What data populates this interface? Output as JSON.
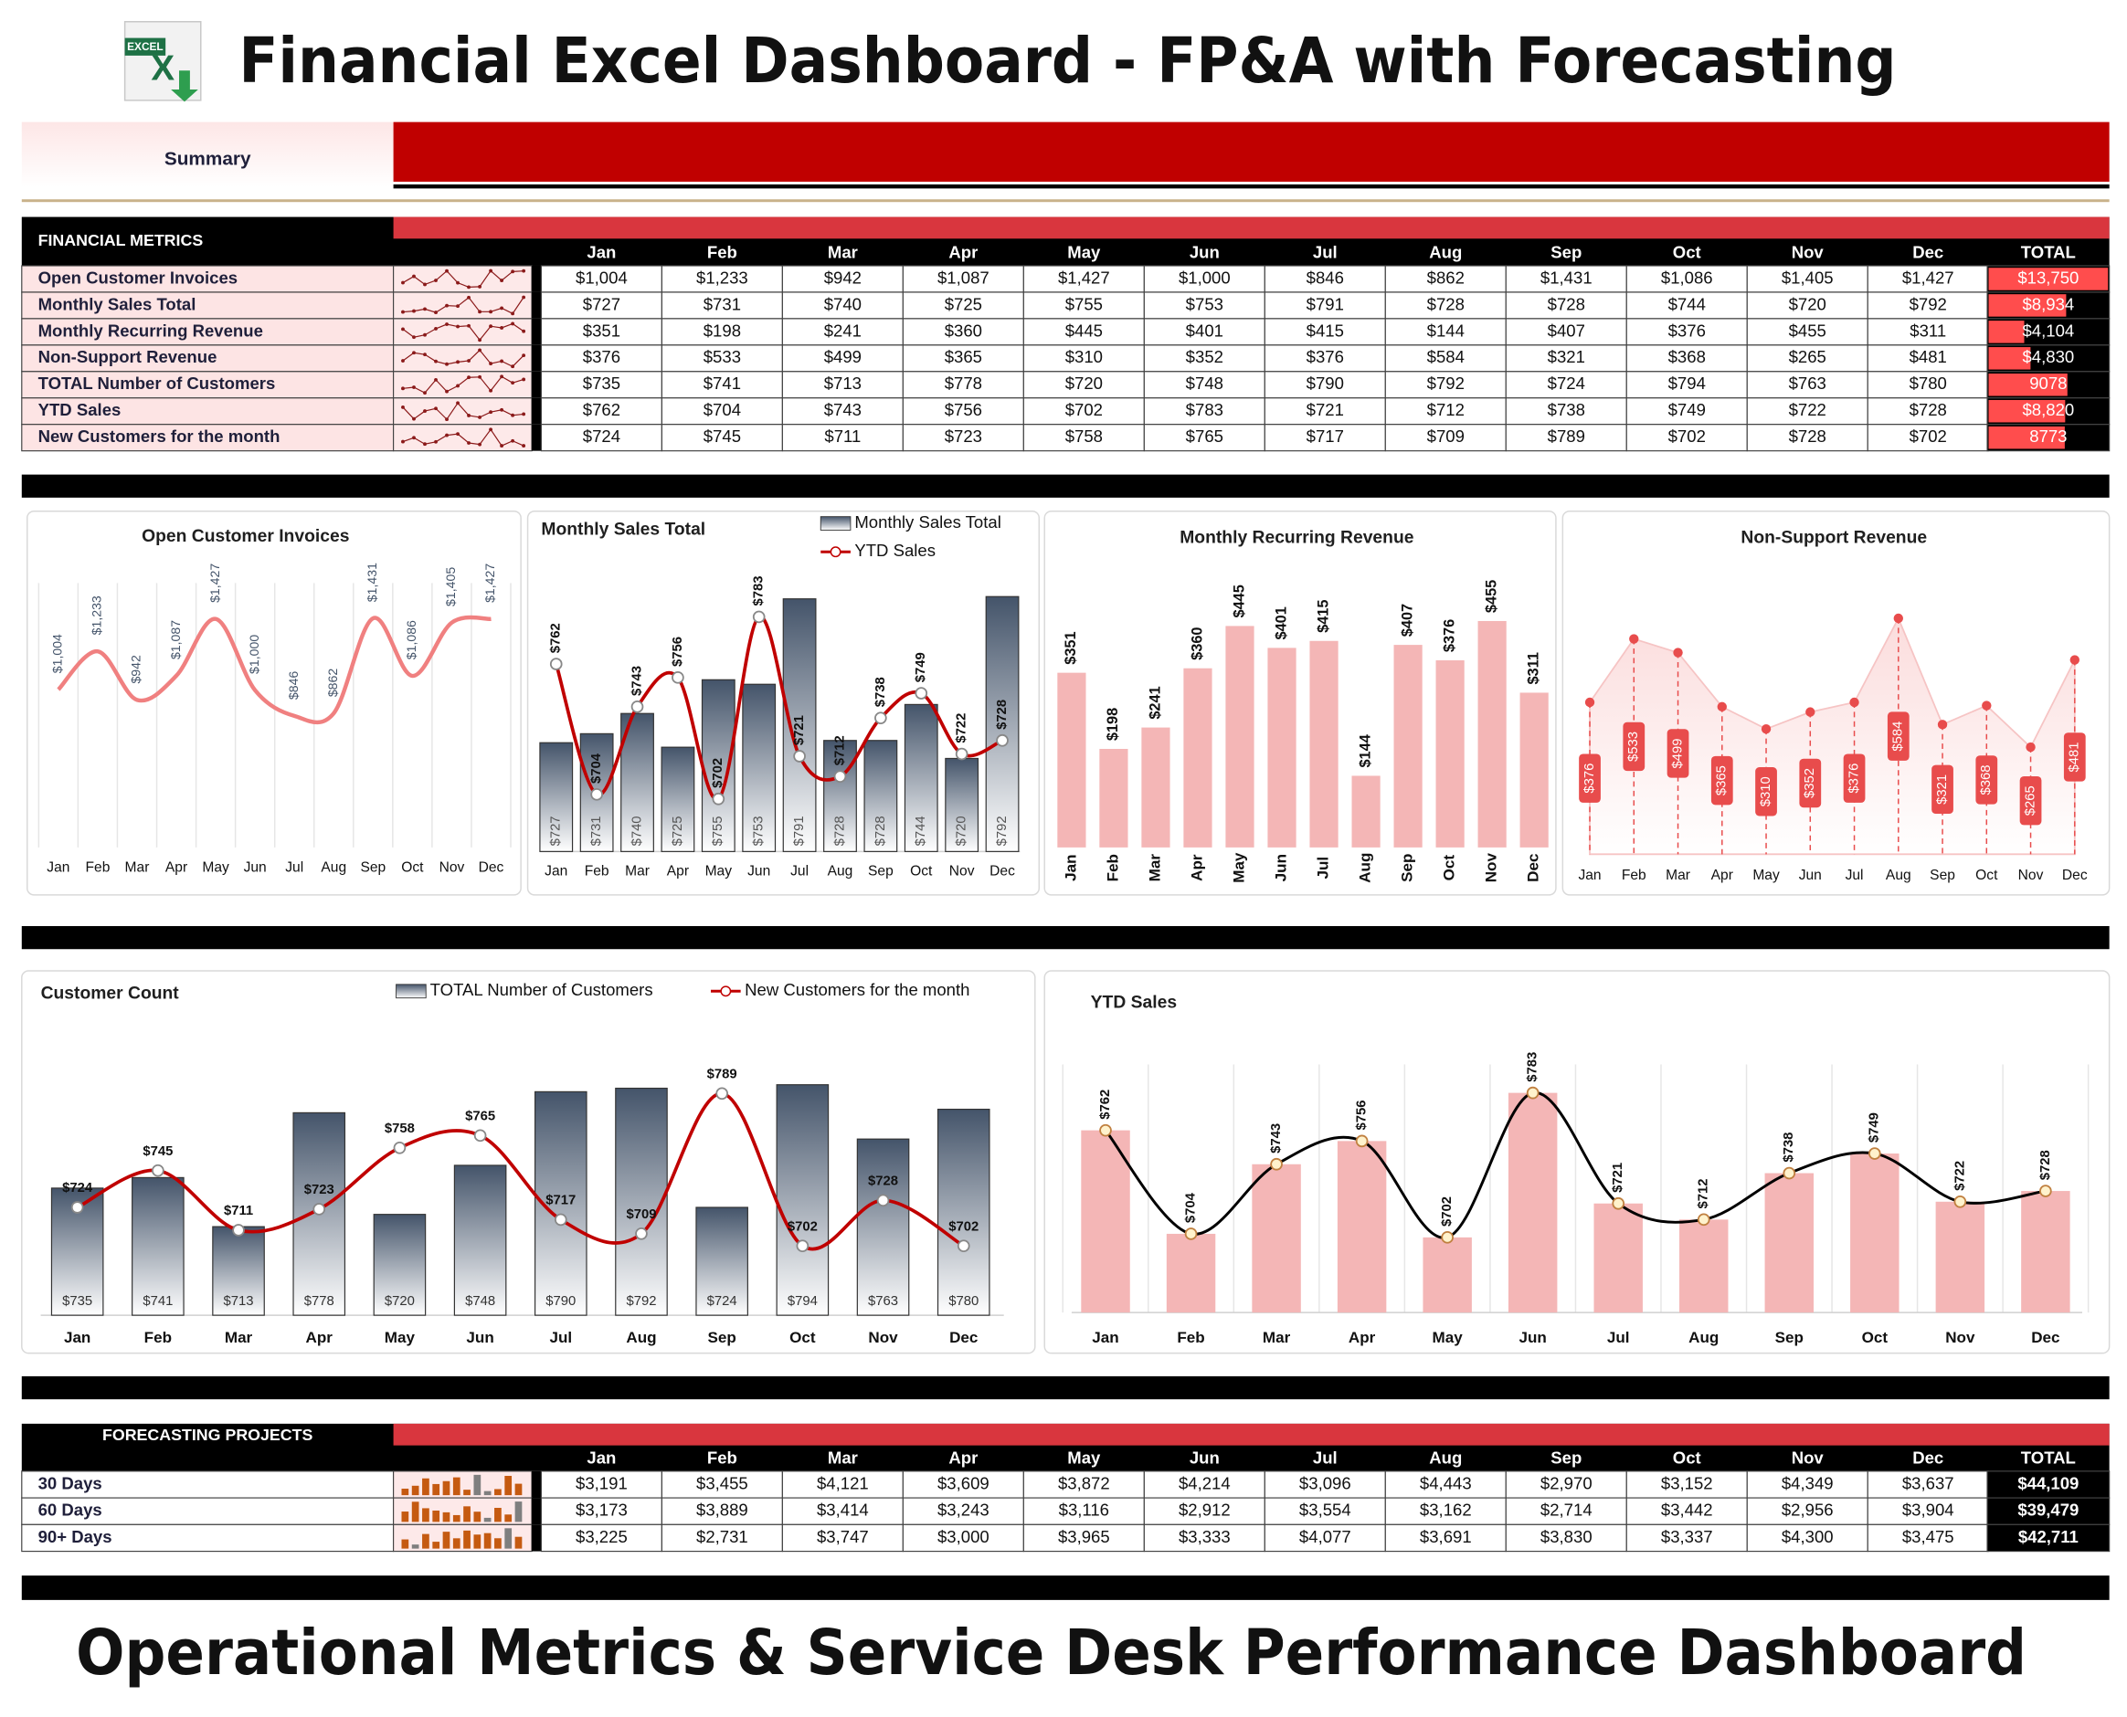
{
  "header": {
    "icon_text": "EXCEL",
    "title": "Financial Excel Dashboard - FP&A with Forecasting",
    "tab": "Summary"
  },
  "metrics_table": {
    "title": "FINANCIAL METRICS",
    "columns": [
      "Jan",
      "Feb",
      "Mar",
      "Apr",
      "May",
      "Jun",
      "Jul",
      "Aug",
      "Sep",
      "Oct",
      "Nov",
      "Dec"
    ],
    "total_header": "TOTAL",
    "rows": [
      {
        "label": "Open Customer Invoices",
        "values": [
          1004,
          1233,
          942,
          1087,
          1427,
          1000,
          846,
          862,
          1431,
          1086,
          1405,
          1427
        ],
        "value_labels": [
          "$1,004",
          "$1,233",
          "$942",
          "$1,087",
          "$1,427",
          "$1,000",
          "$846",
          "$862",
          "$1,431",
          "$1,086",
          "$1,405",
          "$1,427"
        ],
        "total": 13750,
        "total_label": "$13,750"
      },
      {
        "label": "Monthly Sales Total",
        "values": [
          727,
          731,
          740,
          725,
          755,
          753,
          791,
          728,
          728,
          744,
          720,
          792
        ],
        "value_labels": [
          "$727",
          "$731",
          "$740",
          "$725",
          "$755",
          "$753",
          "$791",
          "$728",
          "$728",
          "$744",
          "$720",
          "$792"
        ],
        "total": 8934,
        "total_label": "$8,934"
      },
      {
        "label": "Monthly Recurring Revenue",
        "values": [
          351,
          198,
          241,
          360,
          445,
          401,
          415,
          144,
          407,
          376,
          455,
          311
        ],
        "value_labels": [
          "$351",
          "$198",
          "$241",
          "$360",
          "$445",
          "$401",
          "$415",
          "$144",
          "$407",
          "$376",
          "$455",
          "$311"
        ],
        "total": 4104,
        "total_label": "$4,104"
      },
      {
        "label": "Non-Support Revenue",
        "values": [
          376,
          533,
          499,
          365,
          310,
          352,
          376,
          584,
          321,
          368,
          265,
          481
        ],
        "value_labels": [
          "$376",
          "$533",
          "$499",
          "$365",
          "$310",
          "$352",
          "$376",
          "$584",
          "$321",
          "$368",
          "$265",
          "$481"
        ],
        "total": 4830,
        "total_label": "$4,830"
      },
      {
        "label": "TOTAL Number of Customers",
        "values": [
          735,
          741,
          713,
          778,
          720,
          748,
          790,
          792,
          724,
          794,
          763,
          780
        ],
        "value_labels": [
          "$735",
          "$741",
          "$713",
          "$778",
          "$720",
          "$748",
          "$790",
          "$792",
          "$724",
          "$794",
          "$763",
          "$780"
        ],
        "total": 9078,
        "total_label": "9078"
      },
      {
        "label": "YTD Sales",
        "values": [
          762,
          704,
          743,
          756,
          702,
          783,
          721,
          712,
          738,
          749,
          722,
          728
        ],
        "value_labels": [
          "$762",
          "$704",
          "$743",
          "$756",
          "$702",
          "$783",
          "$721",
          "$712",
          "$738",
          "$749",
          "$722",
          "$728"
        ],
        "total": 8820,
        "total_label": "$8,820"
      },
      {
        "label": "New Customers for the month",
        "values": [
          724,
          745,
          711,
          723,
          758,
          765,
          717,
          709,
          789,
          702,
          728,
          702
        ],
        "value_labels": [
          "$724",
          "$745",
          "$711",
          "$723",
          "$758",
          "$765",
          "$717",
          "$709",
          "$789",
          "$702",
          "$728",
          "$702"
        ],
        "total": 8773,
        "total_label": "8773"
      }
    ],
    "spark_color": "#8b1a1a",
    "bar_color": "#ff4d4d"
  },
  "chart_data": [
    {
      "type": "line",
      "title": "Open Customer Invoices",
      "categories": [
        "Jan",
        "Feb",
        "Mar",
        "Apr",
        "May",
        "Jun",
        "Jul",
        "Aug",
        "Sep",
        "Oct",
        "Nov",
        "Dec"
      ],
      "values": [
        1004,
        1233,
        942,
        1087,
        1427,
        1000,
        846,
        862,
        1431,
        1086,
        1405,
        1427
      ],
      "value_labels": [
        "$1,004",
        "$1,233",
        "$942",
        "$1,087",
        "$1,427",
        "$1,000",
        "$846",
        "$862",
        "$1,431",
        "$1,086",
        "$1,405",
        "$1,427"
      ],
      "color": "#f08080",
      "smooth": true
    },
    {
      "type": "combo",
      "title": "Monthly Sales Total",
      "categories": [
        "Jan",
        "Feb",
        "Mar",
        "Apr",
        "May",
        "Jun",
        "Jul",
        "Aug",
        "Sep",
        "Oct",
        "Nov",
        "Dec"
      ],
      "legend": "top-right",
      "series": [
        {
          "name": "Monthly Sales Total",
          "kind": "bar",
          "color": "#44546a",
          "values": [
            727,
            731,
            740,
            725,
            755,
            753,
            791,
            728,
            728,
            744,
            720,
            792
          ],
          "value_labels": [
            "$727",
            "$731",
            "$740",
            "$725",
            "$755",
            "$753",
            "$791",
            "$728",
            "$728",
            "$744",
            "$720",
            "$792"
          ]
        },
        {
          "name": "YTD Sales",
          "kind": "line",
          "color": "#c00000",
          "values": [
            762,
            704,
            743,
            756,
            702,
            783,
            721,
            712,
            738,
            749,
            722,
            728
          ],
          "value_labels": [
            "$762",
            "$704",
            "$743",
            "$756",
            "$702",
            "$783",
            "$721",
            "$712",
            "$738",
            "$749",
            "$722",
            "$728"
          ]
        }
      ]
    },
    {
      "type": "bar",
      "title": "Monthly Recurring Revenue",
      "categories": [
        "Jan",
        "Feb",
        "Mar",
        "Apr",
        "May",
        "Jun",
        "Jul",
        "Aug",
        "Sep",
        "Oct",
        "Nov",
        "Dec"
      ],
      "values": [
        351,
        198,
        241,
        360,
        445,
        401,
        415,
        144,
        407,
        376,
        455,
        311
      ],
      "value_labels": [
        "$351",
        "$198",
        "$241",
        "$360",
        "$445",
        "$401",
        "$415",
        "$144",
        "$407",
        "$376",
        "$455",
        "$311"
      ],
      "color": "#f4b6b6"
    },
    {
      "type": "area",
      "title": "Non-Support Revenue",
      "categories": [
        "Jan",
        "Feb",
        "Mar",
        "Apr",
        "May",
        "Jun",
        "Jul",
        "Aug",
        "Sep",
        "Oct",
        "Nov",
        "Dec"
      ],
      "values": [
        376,
        533,
        499,
        365,
        310,
        352,
        376,
        584,
        321,
        368,
        265,
        481
      ],
      "value_labels": [
        "$376",
        "$533",
        "$499",
        "$365",
        "$310",
        "$352",
        "$376",
        "$584",
        "$321",
        "$368",
        "$265",
        "$481"
      ],
      "color": "#e84c4c",
      "fill_color": "#fbdcdc"
    },
    {
      "type": "combo",
      "title": "Customer Count",
      "categories": [
        "Jan",
        "Feb",
        "Mar",
        "Apr",
        "May",
        "Jun",
        "Jul",
        "Aug",
        "Sep",
        "Oct",
        "Nov",
        "Dec"
      ],
      "legend": "top",
      "series": [
        {
          "name": "TOTAL Number of Customers",
          "kind": "bar",
          "color": "#44546a",
          "values": [
            735,
            741,
            713,
            778,
            720,
            748,
            790,
            792,
            724,
            794,
            763,
            780
          ],
          "value_labels": [
            "$735",
            "$741",
            "$713",
            "$778",
            "$720",
            "$748",
            "$790",
            "$792",
            "$724",
            "$794",
            "$763",
            "$780"
          ]
        },
        {
          "name": "New Customers for the month",
          "kind": "line",
          "color": "#c00000",
          "values": [
            724,
            745,
            711,
            723,
            758,
            765,
            717,
            709,
            789,
            702,
            728,
            702
          ],
          "value_labels": [
            "$724",
            "$745",
            "$711",
            "$723",
            "$758",
            "$765",
            "$717",
            "$709",
            "$789",
            "$702",
            "$728",
            "$702"
          ]
        }
      ]
    },
    {
      "type": "bar",
      "title": "YTD Sales",
      "categories": [
        "Jan",
        "Feb",
        "Mar",
        "Apr",
        "May",
        "Jun",
        "Jul",
        "Aug",
        "Sep",
        "Oct",
        "Nov",
        "Dec"
      ],
      "values": [
        762,
        704,
        743,
        756,
        702,
        783,
        721,
        712,
        738,
        749,
        722,
        728
      ],
      "value_labels": [
        "$762",
        "$704",
        "$743",
        "$756",
        "$702",
        "$783",
        "$721",
        "$712",
        "$738",
        "$749",
        "$722",
        "$728"
      ],
      "color": "#f4b6b6",
      "line_overlay": true,
      "line_color": "#000000"
    }
  ],
  "forecast_table": {
    "title": "FORECASTING PROJECTS",
    "columns": [
      "Jan",
      "Feb",
      "Mar",
      "Apr",
      "May",
      "Jun",
      "Jul",
      "Aug",
      "Sep",
      "Oct",
      "Nov",
      "Dec"
    ],
    "total_header": "TOTAL",
    "rows": [
      {
        "label": "30 Days",
        "values": [
          3191,
          3455,
          4121,
          3609,
          3872,
          4214,
          3096,
          4443,
          2970,
          3152,
          4349,
          3637
        ],
        "value_labels": [
          "$3,191",
          "$3,455",
          "$4,121",
          "$3,609",
          "$3,872",
          "$4,214",
          "$3,096",
          "$4,443",
          "$2,970",
          "$3,152",
          "$4,349",
          "$3,637"
        ],
        "total": "$44,109"
      },
      {
        "label": "60 Days",
        "values": [
          3173,
          3889,
          3414,
          3243,
          3116,
          2912,
          3554,
          3162,
          2714,
          3442,
          2956,
          3904
        ],
        "value_labels": [
          "$3,173",
          "$3,889",
          "$3,414",
          "$3,243",
          "$3,116",
          "$2,912",
          "$3,554",
          "$3,162",
          "$2,714",
          "$3,442",
          "$2,956",
          "$3,904"
        ],
        "total": "$39,479"
      },
      {
        "label": "90+ Days",
        "values": [
          3225,
          2731,
          3747,
          3000,
          3965,
          3333,
          4077,
          3691,
          3830,
          3337,
          4300,
          3475
        ],
        "value_labels": [
          "$3,225",
          "$2,731",
          "$3,747",
          "$3,000",
          "$3,965",
          "$3,333",
          "$4,077",
          "$3,691",
          "$3,830",
          "$3,337",
          "$4,300",
          "$3,475"
        ],
        "total": "$42,711"
      }
    ],
    "spark_color": "#c55a11",
    "spark_high_color": "#7f7f7f"
  },
  "footer": {
    "title": "Operational Metrics & Service Desk Performance Dashboard"
  }
}
